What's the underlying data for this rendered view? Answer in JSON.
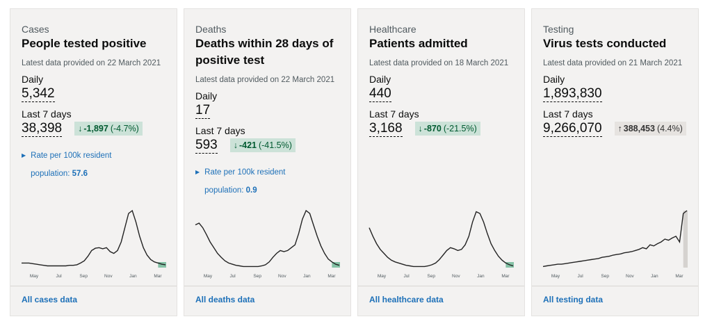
{
  "cards": [
    {
      "category": "Cases",
      "title": "People tested positive",
      "updated": "Latest data provided on 22 March 2021",
      "daily_label": "Daily",
      "daily": "5,342",
      "weekly_label": "Last 7 days",
      "weekly": "38,398",
      "change": {
        "arrow": "↓",
        "amount": "-1,897",
        "percent": "(-4.7%)",
        "background": "#cce2d8",
        "color": "#005a30"
      },
      "rate": {
        "label": "Rate per 100k resident population:",
        "value": "57.6"
      },
      "sparkline": {
        "months": [
          "May",
          "Jul",
          "Sep",
          "Nov",
          "Jan",
          "Mar"
        ],
        "highlight": "#85c2a6",
        "values": [
          8,
          8,
          8,
          7,
          6,
          5,
          4,
          3,
          3,
          3,
          3,
          3,
          3,
          4,
          4,
          5,
          8,
          12,
          20,
          30,
          34,
          35,
          33,
          35,
          28,
          25,
          30,
          45,
          70,
          95,
          100,
          80,
          55,
          35,
          22,
          14,
          10,
          8,
          6,
          5
        ]
      },
      "link": "All cases data"
    },
    {
      "category": "Deaths",
      "title": "Deaths within 28 days of positive test",
      "updated": "Latest data provided on 22 March 2021",
      "daily_label": "Daily",
      "daily": "17",
      "weekly_label": "Last 7 days",
      "weekly": "593",
      "change": {
        "arrow": "↓",
        "amount": "-421",
        "percent": "(-41.5%)",
        "background": "#cce2d8",
        "color": "#005a30"
      },
      "rate": {
        "label": "Rate per 100k resident population:",
        "value": "0.9"
      },
      "sparkline": {
        "months": [
          "May",
          "Jul",
          "Sep",
          "Nov",
          "Jan",
          "Mar"
        ],
        "highlight": "#85c2a6",
        "values": [
          75,
          78,
          70,
          58,
          45,
          35,
          25,
          18,
          12,
          8,
          6,
          4,
          3,
          2,
          2,
          2,
          2,
          2,
          3,
          5,
          10,
          18,
          25,
          30,
          28,
          30,
          35,
          40,
          60,
          85,
          100,
          95,
          75,
          55,
          38,
          25,
          15,
          10,
          6,
          4
        ]
      },
      "link": "All deaths data"
    },
    {
      "category": "Healthcare",
      "title": "Patients admitted",
      "updated": "Latest data provided on 18 March 2021",
      "daily_label": "Daily",
      "daily": "440",
      "weekly_label": "Last 7 days",
      "weekly": "3,168",
      "change": {
        "arrow": "↓",
        "amount": "-870",
        "percent": "(-21.5%)",
        "background": "#cce2d8",
        "color": "#005a30"
      },
      "sparkline": {
        "months": [
          "May",
          "Jul",
          "Sep",
          "Nov",
          "Jan",
          "Mar"
        ],
        "highlight": "#85c2a6",
        "values": [
          70,
          55,
          42,
          32,
          25,
          18,
          13,
          10,
          8,
          6,
          4,
          3,
          2,
          2,
          2,
          2,
          3,
          5,
          8,
          14,
          22,
          30,
          35,
          33,
          30,
          32,
          40,
          55,
          80,
          98,
          95,
          80,
          60,
          42,
          30,
          20,
          13,
          8,
          5,
          3
        ]
      },
      "link": "All healthcare data"
    },
    {
      "category": "Testing",
      "title": "Virus tests conducted",
      "updated": "Latest data provided on 21 March 2021",
      "daily_label": "Daily",
      "daily": "1,893,830",
      "weekly_label": "Last 7 days",
      "weekly": "9,266,070",
      "change": {
        "arrow": "↑",
        "amount": "388,453",
        "percent": "(4.4%)",
        "background": "#e6e3e0",
        "color": "#333333"
      },
      "sparkline": {
        "months": [
          "May",
          "Jul",
          "Sep",
          "Nov",
          "Jan",
          "Mar"
        ],
        "highlight": "#d5d2cf",
        "values": [
          2,
          3,
          4,
          5,
          6,
          6,
          7,
          8,
          9,
          10,
          11,
          12,
          13,
          14,
          15,
          16,
          18,
          19,
          20,
          22,
          23,
          24,
          26,
          27,
          28,
          30,
          32,
          35,
          33,
          40,
          38,
          42,
          45,
          50,
          48,
          52,
          55,
          45,
          95,
          100
        ]
      },
      "link": "All testing data"
    }
  ]
}
